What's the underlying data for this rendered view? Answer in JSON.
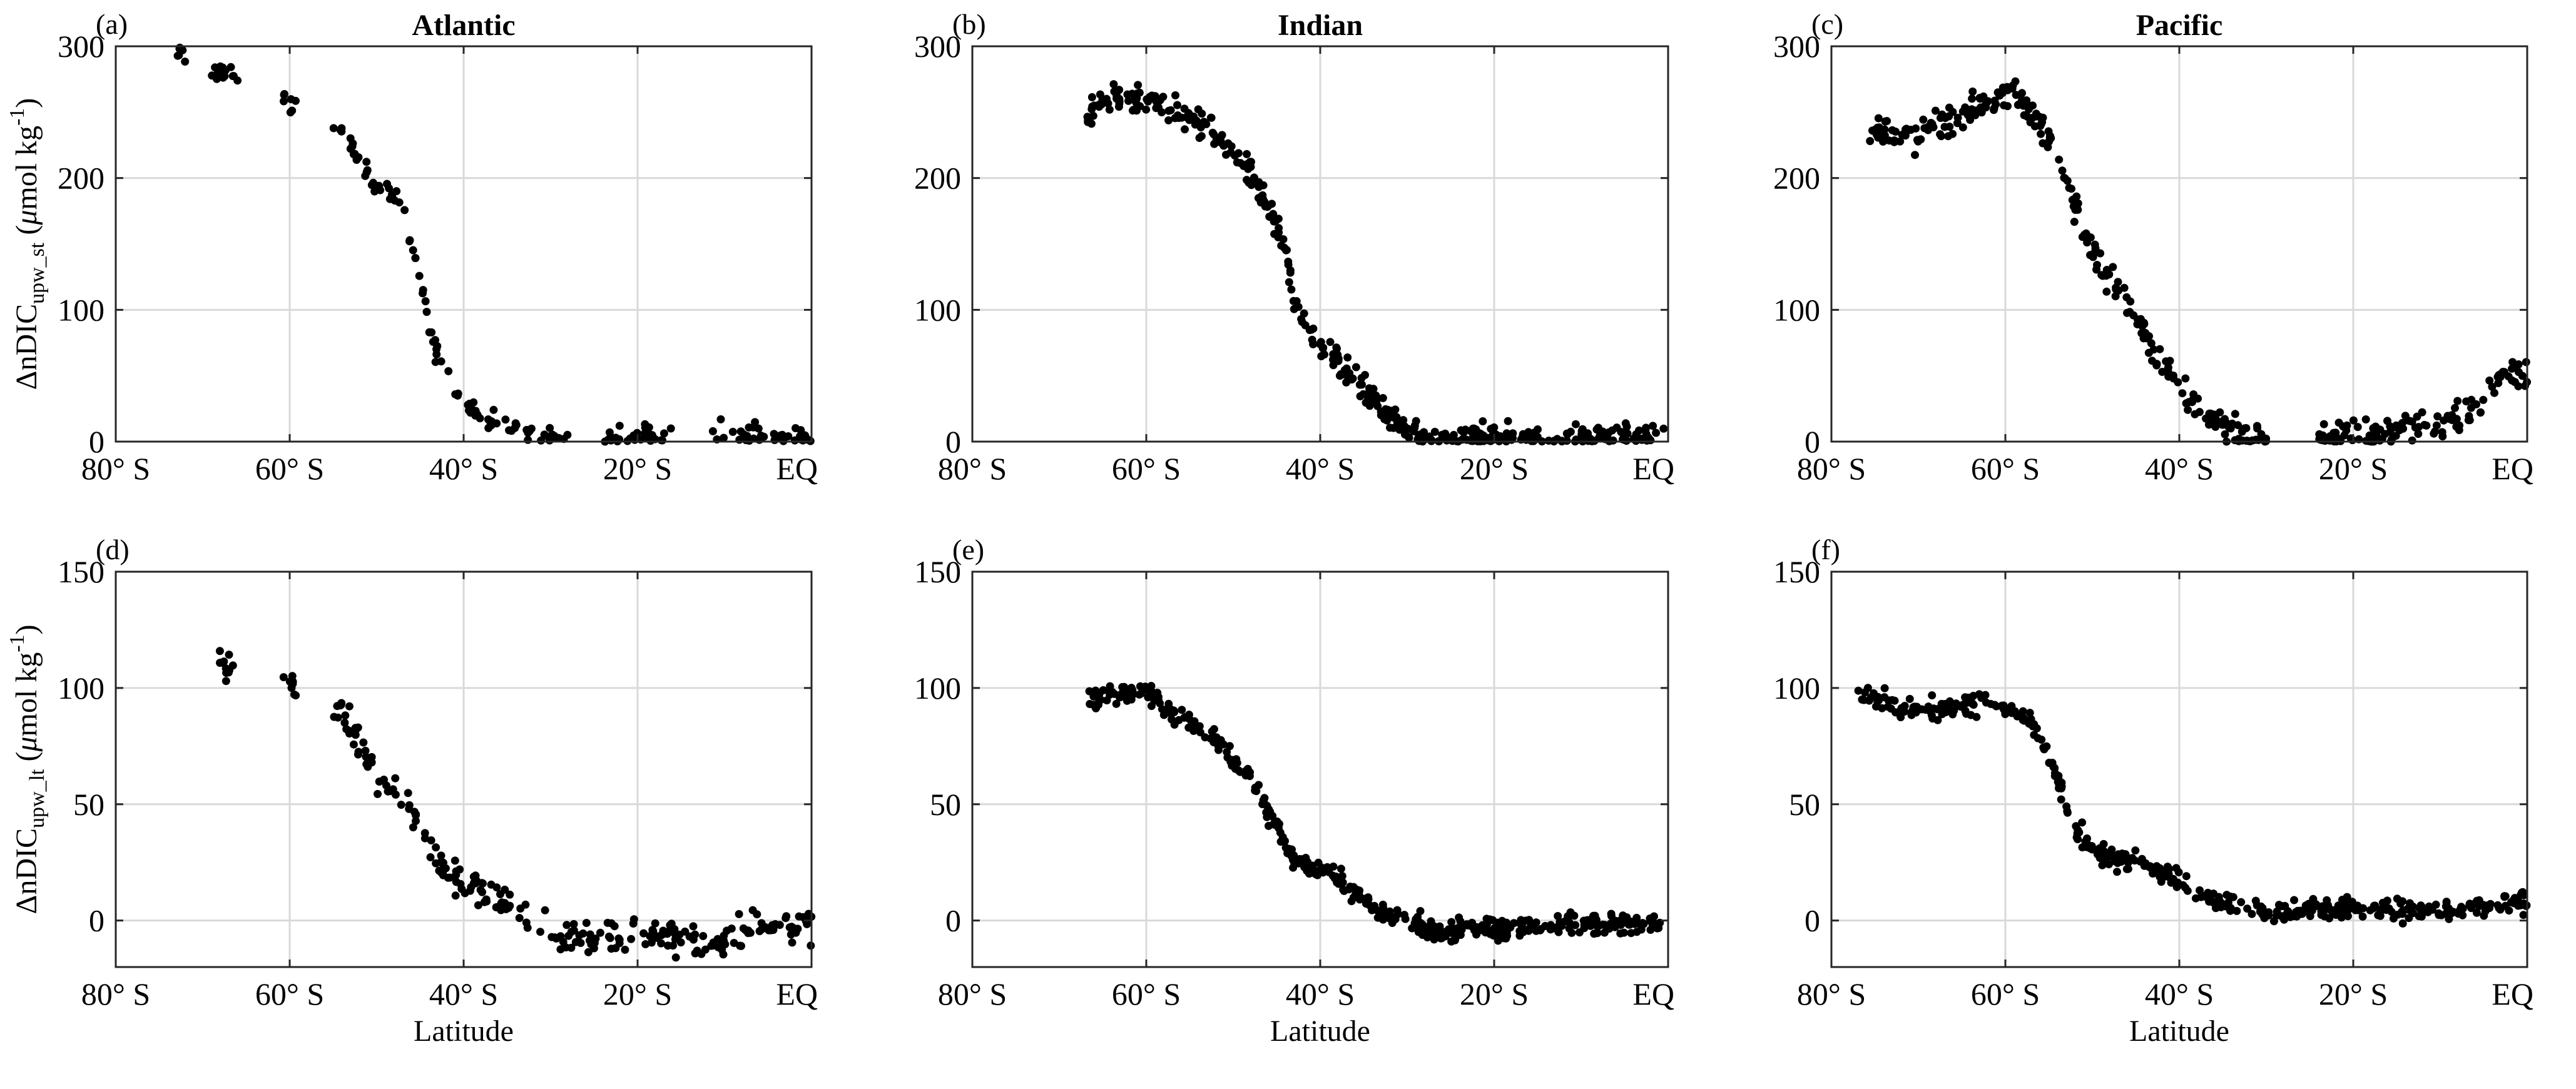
{
  "chart_data": [
    {
      "id": "a",
      "type": "scatter",
      "label": "(a)",
      "title": "Atlantic",
      "xlabel": "",
      "ylabel_main": "ΔnDIC",
      "ylabel_sub": "upw_st",
      "ylabel_unit_pre": "(",
      "ylabel_unit_mu": "μ",
      "ylabel_unit_post": "mol kg",
      "ylabel_unit_sup": "-1",
      "ylabel_unit_close": ")",
      "xlim": [
        -80,
        0
      ],
      "ylim": [
        0,
        300
      ],
      "xticks": [
        -80,
        -60,
        -40,
        -20,
        0
      ],
      "xtick_labels": [
        "80° S",
        "60° S",
        "40° S",
        "20° S",
        "EQ"
      ],
      "yticks": [
        0,
        100,
        200,
        300
      ],
      "ytick_labels": [
        "0",
        "100",
        "200",
        "300"
      ],
      "trend": [
        [
          -73,
          298
        ],
        [
          -68,
          280
        ],
        [
          -60,
          258
        ],
        [
          -54,
          235
        ],
        [
          -50,
          195
        ],
        [
          -47,
          180
        ],
        [
          -45,
          120
        ],
        [
          -43,
          65
        ],
        [
          -40,
          25
        ],
        [
          -35,
          10
        ],
        [
          -30,
          3
        ],
        [
          -20,
          4
        ],
        [
          -10,
          6
        ],
        [
          0,
          3
        ]
      ],
      "spread": 8,
      "lat_range": [
        -73,
        0
      ],
      "lat_gaps": [
        [
          -72,
          -69
        ],
        [
          -66,
          -61
        ],
        [
          -59,
          -55
        ],
        [
          -28,
          -24
        ],
        [
          -16,
          -12
        ]
      ],
      "n": 190
    },
    {
      "id": "b",
      "type": "scatter",
      "label": "(b)",
      "title": "Indian",
      "xlabel": "",
      "xlim": [
        -80,
        0
      ],
      "ylim": [
        0,
        300
      ],
      "xticks": [
        -80,
        -60,
        -40,
        -20,
        0
      ],
      "xtick_labels": [
        "80° S",
        "60° S",
        "40° S",
        "20° S",
        "EQ"
      ],
      "yticks": [
        0,
        100,
        200,
        300
      ],
      "ytick_labels": [
        "0",
        "100",
        "200",
        "300"
      ],
      "trend": [
        [
          -67,
          245
        ],
        [
          -64,
          262
        ],
        [
          -60,
          258
        ],
        [
          -56,
          250
        ],
        [
          -52,
          230
        ],
        [
          -48,
          205
        ],
        [
          -45,
          165
        ],
        [
          -43,
          110
        ],
        [
          -41,
          75
        ],
        [
          -38,
          62
        ],
        [
          -35,
          40
        ],
        [
          -32,
          15
        ],
        [
          -28,
          4
        ],
        [
          -20,
          2
        ],
        [
          -10,
          3
        ],
        [
          0,
          3
        ]
      ],
      "spread": 11,
      "lat_range": [
        -67,
        0
      ],
      "lat_gaps": [],
      "n": 430
    },
    {
      "id": "c",
      "type": "scatter",
      "label": "(c)",
      "title": "Pacific",
      "xlabel": "",
      "xlim": [
        -80,
        0
      ],
      "ylim": [
        0,
        300
      ],
      "xticks": [
        -80,
        -60,
        -40,
        -20,
        0
      ],
      "xtick_labels": [
        "80° S",
        "60° S",
        "40° S",
        "20° S",
        "EQ"
      ],
      "yticks": [
        0,
        100,
        200,
        300
      ],
      "ytick_labels": [
        "0",
        "100",
        "200",
        "300"
      ],
      "trend": [
        [
          -76,
          235
        ],
        [
          -70,
          232
        ],
        [
          -66,
          245
        ],
        [
          -63,
          255
        ],
        [
          -59,
          262
        ],
        [
          -56,
          245
        ],
        [
          -53,
          195
        ],
        [
          -50,
          145
        ],
        [
          -47,
          115
        ],
        [
          -43,
          70
        ],
        [
          -40,
          40
        ],
        [
          -36,
          18
        ],
        [
          -33,
          4
        ],
        [
          -30,
          0
        ],
        [
          -20,
          4
        ],
        [
          -10,
          12
        ],
        [
          -5,
          30
        ],
        [
          -3,
          50
        ],
        [
          0,
          50
        ]
      ],
      "spread": 12,
      "lat_range": [
        -76,
        0
      ],
      "lat_gaps": [
        [
          -30,
          -24
        ]
      ],
      "n": 380
    },
    {
      "id": "d",
      "type": "scatter",
      "label": "(d)",
      "title": "",
      "xlabel": "Latitude",
      "ylabel_main": "ΔnDIC",
      "ylabel_sub": "upw_lt",
      "ylabel_unit_pre": "(",
      "ylabel_unit_mu": "μ",
      "ylabel_unit_post": "mol kg",
      "ylabel_unit_sup": "-1",
      "ylabel_unit_close": ")",
      "xlim": [
        -80,
        0
      ],
      "ylim": [
        -20,
        150
      ],
      "xticks": [
        -80,
        -60,
        -40,
        -20,
        0
      ],
      "xtick_labels": [
        "80° S",
        "60° S",
        "40° S",
        "20° S",
        "EQ"
      ],
      "yticks": [
        0,
        50,
        100,
        150
      ],
      "ytick_labels": [
        "0",
        "50",
        "100",
        "150"
      ],
      "trend": [
        [
          -69,
          112
        ],
        [
          -66,
          105
        ],
        [
          -60,
          100
        ],
        [
          -54,
          90
        ],
        [
          -50,
          62
        ],
        [
          -47,
          52
        ],
        [
          -45,
          38
        ],
        [
          -42,
          20
        ],
        [
          -38,
          12
        ],
        [
          -33,
          5
        ],
        [
          -28,
          -8
        ],
        [
          -20,
          -5
        ],
        [
          -12,
          -12
        ],
        [
          -7,
          -3
        ],
        [
          0,
          -2
        ]
      ],
      "spread": 7,
      "lat_range": [
        -69,
        0
      ],
      "lat_gaps": [
        [
          -66,
          -61
        ],
        [
          -59,
          -55
        ]
      ],
      "n": 260
    },
    {
      "id": "e",
      "type": "scatter",
      "label": "(e)",
      "title": "",
      "xlabel": "Latitude",
      "xlim": [
        -80,
        0
      ],
      "ylim": [
        -20,
        150
      ],
      "xticks": [
        -80,
        -60,
        -40,
        -20,
        0
      ],
      "xtick_labels": [
        "80° S",
        "60° S",
        "40° S",
        "20° S",
        "EQ"
      ],
      "yticks": [
        0,
        50,
        100,
        150
      ],
      "ytick_labels": [
        "0",
        "50",
        "100",
        "150"
      ],
      "trend": [
        [
          -67,
          97
        ],
        [
          -60,
          97
        ],
        [
          -56,
          88
        ],
        [
          -52,
          78
        ],
        [
          -48,
          60
        ],
        [
          -45,
          40
        ],
        [
          -43,
          25
        ],
        [
          -38,
          18
        ],
        [
          -34,
          5
        ],
        [
          -28,
          -3
        ],
        [
          -20,
          -4
        ],
        [
          -10,
          -1
        ],
        [
          0,
          -2
        ]
      ],
      "spread": 4.5,
      "lat_range": [
        -67,
        0
      ],
      "lat_gaps": [],
      "n": 440
    },
    {
      "id": "f",
      "type": "scatter",
      "label": "(f)",
      "title": "",
      "xlabel": "Latitude",
      "xlim": [
        -80,
        0
      ],
      "ylim": [
        -20,
        150
      ],
      "xticks": [
        -80,
        -60,
        -40,
        -20,
        0
      ],
      "xtick_labels": [
        "80° S",
        "60° S",
        "40° S",
        "20° S",
        "EQ"
      ],
      "yticks": [
        0,
        50,
        100,
        150
      ],
      "ytick_labels": [
        "0",
        "50",
        "100",
        "150"
      ],
      "trend": [
        [
          -77,
          98
        ],
        [
          -72,
          92
        ],
        [
          -66,
          91
        ],
        [
          -60,
          93
        ],
        [
          -57,
          85
        ],
        [
          -55,
          70
        ],
        [
          -52,
          40
        ],
        [
          -49,
          28
        ],
        [
          -45,
          25
        ],
        [
          -41,
          20
        ],
        [
          -37,
          10
        ],
        [
          -30,
          3
        ],
        [
          -20,
          6
        ],
        [
          -10,
          4
        ],
        [
          0,
          8
        ]
      ],
      "spread": 4.5,
      "lat_range": [
        -77,
        0
      ],
      "lat_gaps": [],
      "n": 440
    }
  ]
}
